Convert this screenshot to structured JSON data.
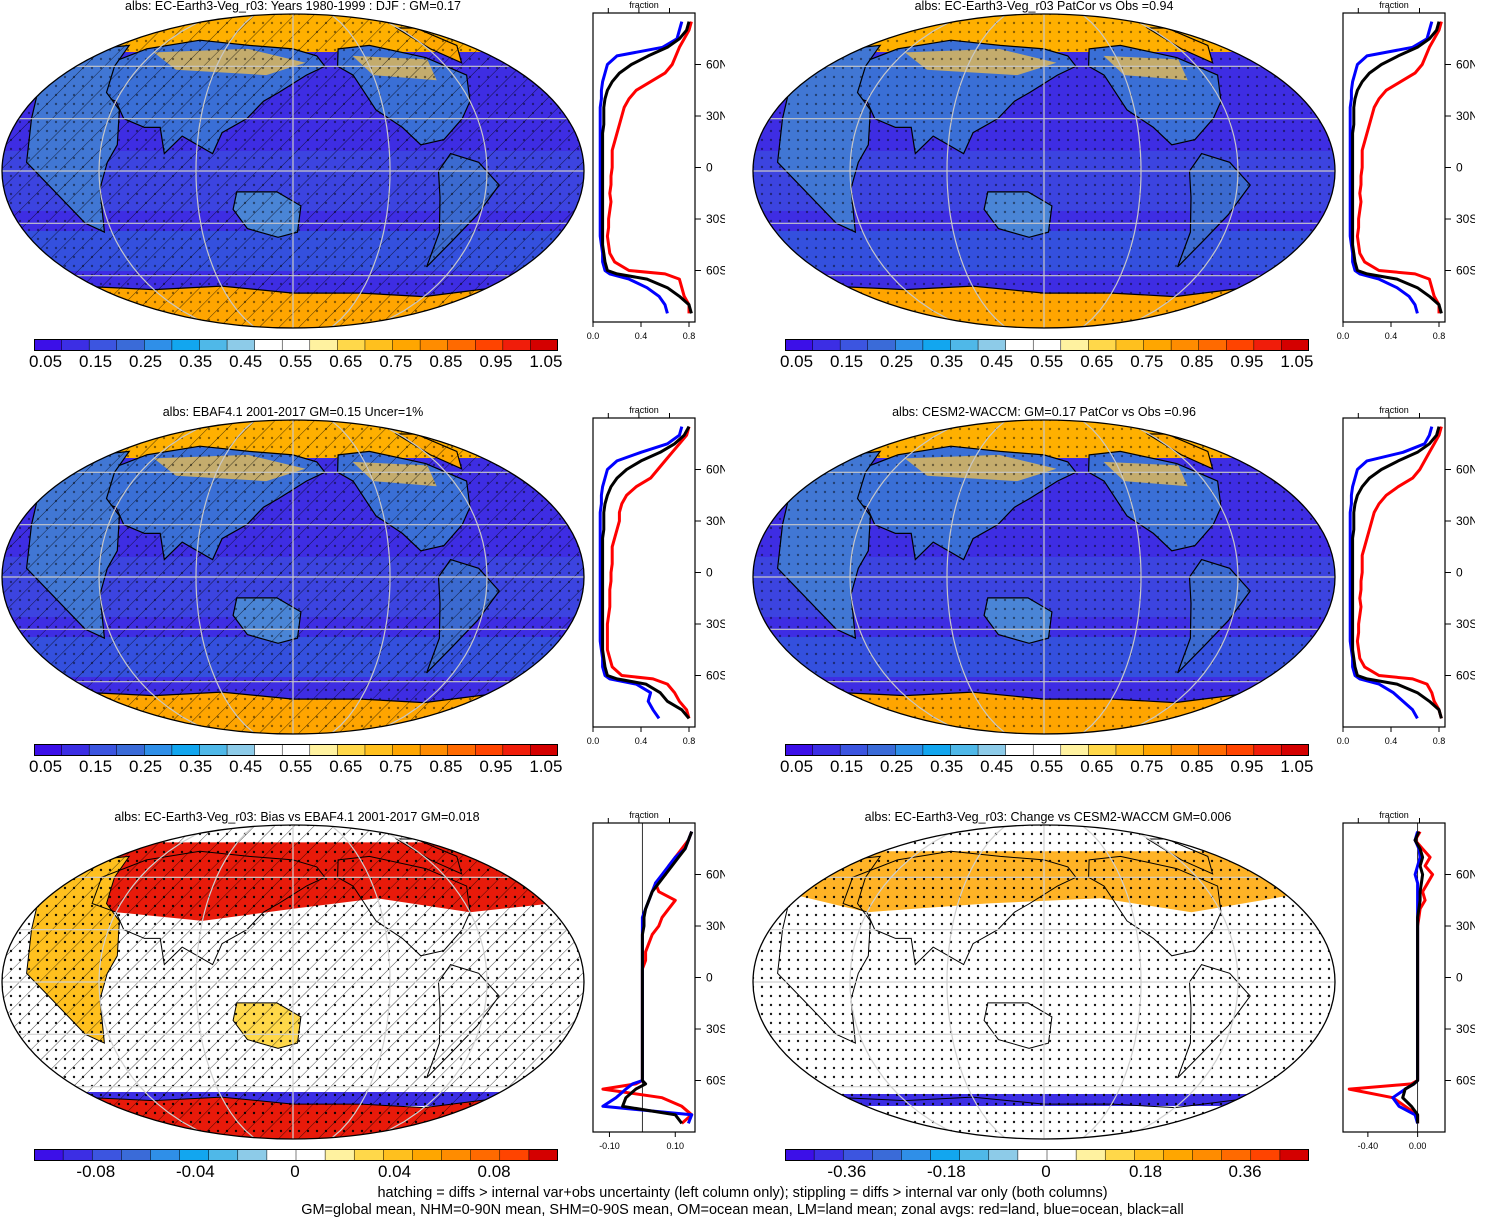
{
  "footer": {
    "line1": "hatching = diffs > internal var+obs uncertainty (left column only); stippling = diffs > internal var only (both columns)",
    "line2": "GM=global mean, NHM=0-90N mean, SHM=0-90S mean, OM=ocean mean, LM=land mean; zonal avgs: red=land, blue=ocean, black=all"
  },
  "colors": {
    "land_line": "#ff0000",
    "ocean_line": "#0000ff",
    "all_line": "#000000",
    "abs_scale": [
      "#3c0fe8",
      "#3c2ee4",
      "#3c55e0",
      "#3a6bd8",
      "#2f8fe8",
      "#12a6ef",
      "#4fb8e8",
      "#8dcbe8",
      "#ffffff",
      "#ffffff",
      "#fff2a0",
      "#ffd84a",
      "#ffc01e",
      "#ffa600",
      "#ff8c00",
      "#ff6a00",
      "#ff4400",
      "#f01d0a",
      "#d40000"
    ],
    "diff_scale": [
      "#3c0fe8",
      "#3c2ee4",
      "#3c55e0",
      "#3a6bd8",
      "#2f8fe8",
      "#12a6ef",
      "#4fb8e8",
      "#8dcbe8",
      "#ffffff",
      "#ffffff",
      "#fff2a0",
      "#ffd84a",
      "#ffc01e",
      "#ffa600",
      "#ff8c00",
      "#ff6a00",
      "#ff4400",
      "#d40000"
    ]
  },
  "chart_data": [
    {
      "type": "heatmap",
      "title": "albs: EC-Earth3-Veg_r03: Years 1980-1999 : DJF : GM=0.17",
      "colorbar_labels": [
        "0.05",
        "0.15",
        "0.25",
        "0.35",
        "0.45",
        "0.55",
        "0.65",
        "0.75",
        "0.85",
        "0.95",
        "1.05"
      ],
      "zonal": {
        "title": "fraction",
        "xlim": [
          0,
          0.85
        ],
        "xticks": [
          "0.0",
          "0.4",
          "0.8"
        ],
        "yticks": [
          "60N",
          "30N",
          "0",
          "30S",
          "60S"
        ],
        "lat": [
          85,
          80,
          75,
          70,
          65,
          60,
          55,
          50,
          45,
          40,
          35,
          30,
          25,
          20,
          15,
          10,
          5,
          0,
          -5,
          -10,
          -15,
          -20,
          -25,
          -30,
          -35,
          -40,
          -45,
          -50,
          -55,
          -60,
          -62,
          -65,
          -70,
          -75,
          -80,
          -85
        ],
        "land": [
          0.82,
          0.8,
          0.76,
          0.72,
          0.69,
          0.66,
          0.6,
          0.48,
          0.36,
          0.3,
          0.26,
          0.24,
          0.22,
          0.2,
          0.18,
          0.16,
          0.16,
          0.16,
          0.15,
          0.15,
          0.14,
          0.15,
          0.14,
          0.13,
          0.13,
          0.12,
          0.13,
          0.14,
          0.18,
          0.3,
          0.6,
          0.72,
          0.74,
          0.76,
          0.8,
          0.8
        ],
        "ocean": [
          0.74,
          0.72,
          0.7,
          0.58,
          0.2,
          0.12,
          0.1,
          0.08,
          0.07,
          0.07,
          0.06,
          0.06,
          0.06,
          0.06,
          0.06,
          0.06,
          0.06,
          0.06,
          0.06,
          0.06,
          0.06,
          0.06,
          0.06,
          0.06,
          0.06,
          0.06,
          0.07,
          0.08,
          0.08,
          0.1,
          0.14,
          0.3,
          0.45,
          0.55,
          0.6,
          0.62
        ],
        "all": [
          0.8,
          0.78,
          0.72,
          0.62,
          0.46,
          0.32,
          0.22,
          0.16,
          0.12,
          0.1,
          0.09,
          0.09,
          0.09,
          0.08,
          0.08,
          0.08,
          0.08,
          0.08,
          0.08,
          0.08,
          0.08,
          0.08,
          0.08,
          0.08,
          0.08,
          0.08,
          0.08,
          0.09,
          0.1,
          0.12,
          0.2,
          0.45,
          0.62,
          0.72,
          0.8,
          0.82
        ]
      }
    },
    {
      "type": "heatmap",
      "title": "albs: EC-Earth3-Veg_r03 PatCor vs Obs =0.94",
      "colorbar_labels": [
        "0.05",
        "0.15",
        "0.25",
        "0.35",
        "0.45",
        "0.55",
        "0.65",
        "0.75",
        "0.85",
        "0.95",
        "1.05"
      ],
      "zonal": {
        "title": "fraction",
        "xlim": [
          0,
          0.85
        ],
        "xticks": [
          "0.0",
          "0.4",
          "0.8"
        ],
        "yticks": [
          "60N",
          "30N",
          "0",
          "30S",
          "60S"
        ],
        "lat": [
          85,
          80,
          75,
          70,
          65,
          60,
          55,
          50,
          45,
          40,
          35,
          30,
          25,
          20,
          15,
          10,
          5,
          0,
          -5,
          -10,
          -15,
          -20,
          -25,
          -30,
          -35,
          -40,
          -45,
          -50,
          -55,
          -60,
          -62,
          -65,
          -70,
          -75,
          -80,
          -85
        ],
        "land": [
          0.82,
          0.8,
          0.76,
          0.72,
          0.69,
          0.66,
          0.6,
          0.48,
          0.36,
          0.3,
          0.26,
          0.24,
          0.22,
          0.2,
          0.18,
          0.16,
          0.16,
          0.16,
          0.15,
          0.15,
          0.14,
          0.15,
          0.14,
          0.13,
          0.13,
          0.12,
          0.13,
          0.14,
          0.18,
          0.3,
          0.6,
          0.72,
          0.74,
          0.76,
          0.8,
          0.8
        ],
        "ocean": [
          0.74,
          0.72,
          0.7,
          0.58,
          0.2,
          0.12,
          0.1,
          0.08,
          0.07,
          0.07,
          0.06,
          0.06,
          0.06,
          0.06,
          0.06,
          0.06,
          0.06,
          0.06,
          0.06,
          0.06,
          0.06,
          0.06,
          0.06,
          0.06,
          0.06,
          0.06,
          0.07,
          0.08,
          0.08,
          0.1,
          0.14,
          0.3,
          0.45,
          0.55,
          0.6,
          0.62
        ],
        "all": [
          0.8,
          0.78,
          0.72,
          0.62,
          0.46,
          0.32,
          0.22,
          0.16,
          0.12,
          0.1,
          0.09,
          0.09,
          0.09,
          0.08,
          0.08,
          0.08,
          0.08,
          0.08,
          0.08,
          0.08,
          0.08,
          0.08,
          0.08,
          0.08,
          0.08,
          0.08,
          0.08,
          0.09,
          0.1,
          0.12,
          0.2,
          0.45,
          0.62,
          0.72,
          0.8,
          0.82
        ]
      }
    },
    {
      "type": "heatmap",
      "title": "albs: EBAF4.1 2001-2017 GM=0.15 Uncer=1%",
      "colorbar_labels": [
        "0.05",
        "0.15",
        "0.25",
        "0.35",
        "0.45",
        "0.55",
        "0.65",
        "0.75",
        "0.85",
        "0.95",
        "1.05"
      ],
      "zonal": {
        "title": "fraction",
        "xlim": [
          0,
          0.85
        ],
        "xticks": [
          "0.0",
          "0.4",
          "0.8"
        ],
        "yticks": [
          "60N",
          "30N",
          "0",
          "30S",
          "60S"
        ],
        "lat": [
          85,
          80,
          75,
          70,
          65,
          60,
          55,
          50,
          45,
          40,
          35,
          30,
          25,
          20,
          15,
          10,
          5,
          0,
          -5,
          -10,
          -15,
          -20,
          -25,
          -30,
          -35,
          -40,
          -45,
          -50,
          -55,
          -60,
          -62,
          -65,
          -70,
          -75,
          -80,
          -85
        ],
        "land": [
          0.8,
          0.78,
          0.72,
          0.66,
          0.6,
          0.54,
          0.48,
          0.36,
          0.28,
          0.24,
          0.22,
          0.22,
          0.2,
          0.18,
          0.16,
          0.16,
          0.16,
          0.15,
          0.15,
          0.14,
          0.14,
          0.14,
          0.13,
          0.12,
          0.12,
          0.12,
          0.12,
          0.14,
          0.16,
          0.24,
          0.5,
          0.62,
          0.68,
          0.72,
          0.78,
          0.8
        ],
        "ocean": [
          0.74,
          0.72,
          0.62,
          0.4,
          0.2,
          0.12,
          0.1,
          0.08,
          0.07,
          0.07,
          0.06,
          0.06,
          0.06,
          0.06,
          0.06,
          0.06,
          0.06,
          0.06,
          0.06,
          0.06,
          0.06,
          0.06,
          0.06,
          0.06,
          0.06,
          0.06,
          0.07,
          0.08,
          0.08,
          0.1,
          0.14,
          0.36,
          0.48,
          0.46,
          0.5,
          0.55
        ],
        "all": [
          0.8,
          0.76,
          0.68,
          0.56,
          0.4,
          0.28,
          0.2,
          0.15,
          0.12,
          0.1,
          0.09,
          0.09,
          0.09,
          0.08,
          0.08,
          0.08,
          0.08,
          0.08,
          0.08,
          0.08,
          0.08,
          0.08,
          0.08,
          0.08,
          0.08,
          0.08,
          0.08,
          0.09,
          0.1,
          0.12,
          0.2,
          0.44,
          0.56,
          0.62,
          0.74,
          0.8
        ]
      }
    },
    {
      "type": "heatmap",
      "title": "albs: CESM2-WACCM: GM=0.17 PatCor vs Obs =0.96",
      "colorbar_labels": [
        "0.05",
        "0.15",
        "0.25",
        "0.35",
        "0.45",
        "0.55",
        "0.65",
        "0.75",
        "0.85",
        "0.95",
        "1.05"
      ],
      "zonal": {
        "title": "fraction",
        "xlim": [
          0,
          0.85
        ],
        "xticks": [
          "0.0",
          "0.4",
          "0.8"
        ],
        "yticks": [
          "60N",
          "30N",
          "0",
          "30S",
          "60S"
        ],
        "lat": [
          85,
          80,
          75,
          70,
          65,
          60,
          55,
          50,
          45,
          40,
          35,
          30,
          25,
          20,
          15,
          10,
          5,
          0,
          -5,
          -10,
          -15,
          -20,
          -25,
          -30,
          -35,
          -40,
          -45,
          -50,
          -55,
          -60,
          -62,
          -65,
          -70,
          -75,
          -80,
          -85
        ],
        "land": [
          0.82,
          0.8,
          0.76,
          0.72,
          0.68,
          0.64,
          0.58,
          0.46,
          0.36,
          0.3,
          0.26,
          0.24,
          0.22,
          0.2,
          0.18,
          0.16,
          0.16,
          0.16,
          0.15,
          0.15,
          0.14,
          0.15,
          0.14,
          0.13,
          0.13,
          0.12,
          0.13,
          0.14,
          0.18,
          0.3,
          0.58,
          0.7,
          0.74,
          0.76,
          0.8,
          0.82
        ],
        "ocean": [
          0.74,
          0.72,
          0.68,
          0.5,
          0.2,
          0.12,
          0.1,
          0.08,
          0.07,
          0.07,
          0.06,
          0.06,
          0.06,
          0.06,
          0.06,
          0.06,
          0.06,
          0.06,
          0.06,
          0.06,
          0.06,
          0.06,
          0.06,
          0.06,
          0.06,
          0.06,
          0.07,
          0.08,
          0.08,
          0.1,
          0.14,
          0.3,
          0.42,
          0.5,
          0.58,
          0.62
        ],
        "all": [
          0.8,
          0.78,
          0.72,
          0.62,
          0.46,
          0.32,
          0.22,
          0.16,
          0.12,
          0.1,
          0.09,
          0.09,
          0.09,
          0.08,
          0.08,
          0.08,
          0.08,
          0.08,
          0.08,
          0.08,
          0.08,
          0.08,
          0.08,
          0.08,
          0.08,
          0.08,
          0.08,
          0.09,
          0.1,
          0.12,
          0.2,
          0.45,
          0.62,
          0.72,
          0.8,
          0.82
        ]
      }
    },
    {
      "type": "heatmap",
      "title": "albs: EC-Earth3-Veg_r03: Bias vs EBAF4.1 2001-2017 GM=0.018",
      "colorbar_labels": [
        "-0.08",
        "-0.04",
        "0",
        "0.04",
        "0.08"
      ],
      "zonal": {
        "title": "fraction",
        "xlim": [
          -0.15,
          0.16
        ],
        "xticks": [
          "-0.10",
          "0.10"
        ],
        "yticks": [
          "60N",
          "30N",
          "0",
          "30S",
          "60S"
        ],
        "lat": [
          85,
          80,
          75,
          70,
          65,
          60,
          55,
          50,
          45,
          40,
          35,
          30,
          25,
          20,
          15,
          10,
          5,
          0,
          -5,
          -10,
          -15,
          -20,
          -25,
          -30,
          -35,
          -40,
          -45,
          -50,
          -55,
          -60,
          -62,
          -65,
          -70,
          -75,
          -80,
          -85
        ],
        "land": [
          0.15,
          0.14,
          0.12,
          0.1,
          0.08,
          0.07,
          0.04,
          0.05,
          0.1,
          0.08,
          0.06,
          0.05,
          0.03,
          0.02,
          0.01,
          0.01,
          0.0,
          0.0,
          0.0,
          0.0,
          0.0,
          0.0,
          0.0,
          0.0,
          0.0,
          0.0,
          0.0,
          0.0,
          0.0,
          0.0,
          -0.02,
          -0.12,
          0.06,
          0.12,
          0.15,
          0.12
        ],
        "ocean": [
          0.15,
          0.14,
          0.13,
          0.1,
          0.08,
          0.06,
          0.04,
          0.03,
          0.02,
          0.01,
          0.0,
          0.0,
          0.0,
          0.0,
          0.0,
          0.0,
          0.0,
          0.0,
          0.0,
          0.0,
          0.0,
          0.0,
          0.0,
          0.0,
          0.0,
          0.0,
          0.0,
          0.0,
          0.0,
          0.0,
          -0.03,
          -0.05,
          -0.08,
          -0.12,
          0.15,
          0.14
        ],
        "all": [
          0.15,
          0.14,
          0.13,
          0.11,
          0.09,
          0.07,
          0.05,
          0.03,
          0.02,
          0.01,
          0.005,
          0.005,
          0.0,
          0.0,
          0.0,
          0.0,
          0.0,
          0.0,
          0.0,
          0.0,
          0.0,
          0.0,
          0.0,
          0.0,
          0.0,
          0.0,
          0.0,
          0.0,
          0.0,
          0.0,
          0.01,
          -0.02,
          -0.05,
          -0.06,
          0.1,
          0.12
        ]
      }
    },
    {
      "type": "heatmap",
      "title": "albs: EC-Earth3-Veg_r03: Change vs CESM2-WACCM GM=0.006",
      "colorbar_labels": [
        "-0.36",
        "-0.18",
        "0",
        "0.18",
        "0.36"
      ],
      "zonal": {
        "title": "fraction",
        "xlim": [
          -0.6,
          0.22
        ],
        "xticks": [
          "-0.40",
          "0.00"
        ],
        "yticks": [
          "60N",
          "30N",
          "0",
          "30S",
          "60S"
        ],
        "lat": [
          85,
          80,
          75,
          70,
          65,
          60,
          55,
          50,
          45,
          40,
          35,
          30,
          25,
          20,
          15,
          10,
          5,
          0,
          -5,
          -10,
          -15,
          -20,
          -25,
          -30,
          -35,
          -40,
          -45,
          -50,
          -55,
          -60,
          -62,
          -65,
          -70,
          -75,
          -80,
          -85
        ],
        "land": [
          0.02,
          -0.02,
          0.04,
          0.1,
          0.06,
          0.12,
          0.08,
          0.04,
          0.06,
          0.02,
          0.01,
          0.0,
          0.0,
          0.0,
          0.0,
          0.0,
          0.0,
          0.0,
          0.0,
          0.0,
          0.0,
          0.0,
          0.0,
          0.0,
          0.0,
          0.0,
          0.0,
          0.0,
          0.0,
          0.0,
          -0.05,
          -0.55,
          -0.2,
          -0.1,
          0.0,
          0.0
        ],
        "ocean": [
          0.0,
          -0.02,
          0.01,
          0.02,
          0.0,
          -0.02,
          0.0,
          0.0,
          0.0,
          0.0,
          0.0,
          0.0,
          0.0,
          0.0,
          0.0,
          0.0,
          0.0,
          0.0,
          0.0,
          0.0,
          0.0,
          0.0,
          0.0,
          0.0,
          0.0,
          0.0,
          0.0,
          0.0,
          0.0,
          0.0,
          -0.03,
          -0.1,
          -0.2,
          -0.15,
          -0.02,
          0.0
        ],
        "all": [
          0.01,
          -0.02,
          0.02,
          0.04,
          0.02,
          0.04,
          0.03,
          0.02,
          0.02,
          0.01,
          0.0,
          0.0,
          0.0,
          0.0,
          0.0,
          0.0,
          0.0,
          0.0,
          0.0,
          0.0,
          0.0,
          0.0,
          0.0,
          0.0,
          0.0,
          0.0,
          0.0,
          0.0,
          0.0,
          0.0,
          -0.03,
          -0.1,
          -0.12,
          -0.05,
          0.0,
          0.0
        ]
      }
    }
  ]
}
